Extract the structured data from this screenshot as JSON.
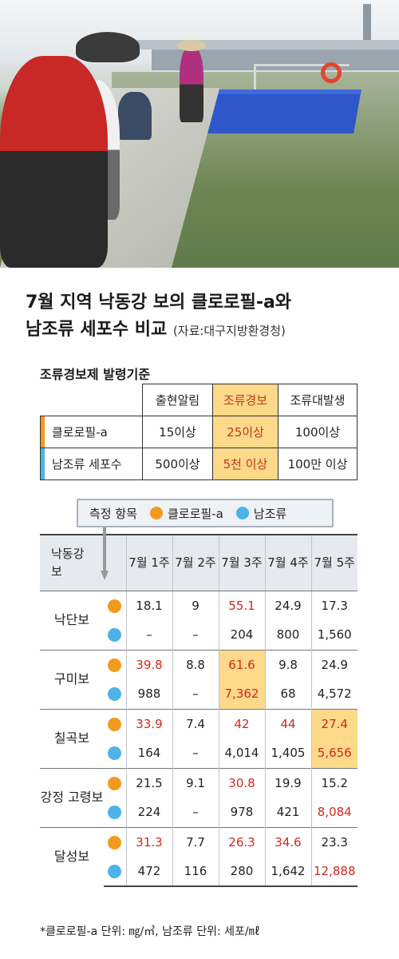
{
  "title": {
    "line1": "7월 지역 낙동강 보의 클로로필-a와",
    "line2": "남조류 세포수 비교",
    "source": "(자료:대구지방환경청)"
  },
  "criteria": {
    "heading": "조류경보제 발령기준",
    "columns": [
      "출현알림",
      "조류경보",
      "조류대발생"
    ],
    "rows": [
      {
        "label": "클로로필-a",
        "values": [
          "15이상",
          "25이상",
          "100이상"
        ]
      },
      {
        "label": "남조류 세포수",
        "values": [
          "500이상",
          "5천 이상",
          "100만 이상"
        ]
      }
    ]
  },
  "legend": {
    "label": "측정 항목",
    "chlorophyll": "클로로필-a",
    "cyanobacteria": "남조류"
  },
  "colors": {
    "chlorophyll": "#f39a1e",
    "cyanobacteria": "#4db3e6",
    "highlight": "#fdd98a",
    "alert_text": "#d1281c"
  },
  "table": {
    "corner": "낙동강 보",
    "weeks": [
      "7월 1주",
      "7월 2주",
      "7월 3주",
      "7월 4주",
      "7월 5주"
    ],
    "weirs": [
      {
        "name": "낙단보",
        "chlorophyll": [
          "18.1",
          "9",
          "55.1",
          "24.9",
          "17.3"
        ],
        "cyano": [
          "–",
          "–",
          "204",
          "800",
          "1,560"
        ]
      },
      {
        "name": "구미보",
        "chlorophyll": [
          "39.8",
          "8.8",
          "61.6",
          "9.8",
          "24.9"
        ],
        "cyano": [
          "988",
          "–",
          "7,362",
          "68",
          "4,572"
        ]
      },
      {
        "name": "칠곡보",
        "chlorophyll": [
          "33.9",
          "7.4",
          "42",
          "44",
          "27.4"
        ],
        "cyano": [
          "164",
          "–",
          "4,014",
          "1,405",
          "5,656"
        ]
      },
      {
        "name": "강정 고령보",
        "chlorophyll": [
          "21.5",
          "9.1",
          "30.8",
          "19.9",
          "15.2"
        ],
        "cyano": [
          "224",
          "–",
          "978",
          "421",
          "8,084"
        ]
      },
      {
        "name": "달성보",
        "chlorophyll": [
          "31.3",
          "7.7",
          "26.3",
          "34.6",
          "23.3"
        ],
        "cyano": [
          "472",
          "116",
          "280",
          "1,642",
          "12,888"
        ]
      }
    ]
  },
  "footnote": "*클로로필-a 단위: ㎎/㎥, 남조류 단위: 세포/㎖"
}
